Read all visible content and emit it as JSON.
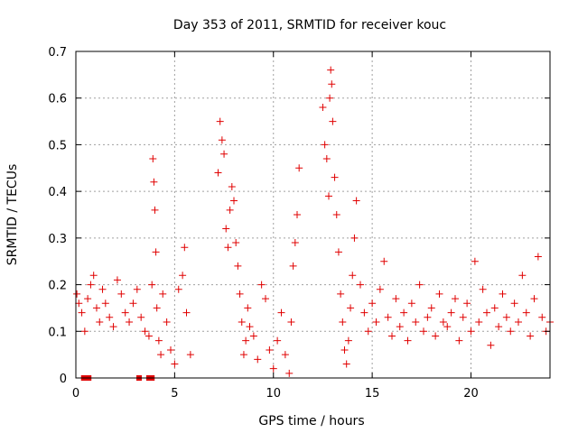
{
  "chart_data": {
    "type": "scatter",
    "title": "Day 353 of 2011, SRMTID for receiver kouc",
    "xlabel": "GPS time / hours",
    "ylabel": "SRMTID / TECUs",
    "xlim": [
      0,
      24
    ],
    "ylim": [
      0,
      0.7
    ],
    "xticks": [
      0,
      5,
      10,
      15,
      20
    ],
    "yticks": [
      0,
      0.1,
      0.2,
      0.3,
      0.4,
      0.5,
      0.6,
      0.7
    ],
    "ytick_labels": [
      "0",
      "0.1",
      "0.2",
      "0.3",
      "0.4",
      "0.5",
      "0.6",
      "0.7"
    ],
    "grid": true,
    "marker_color": "#e00000",
    "series": [
      {
        "marker": "plus",
        "x": [
          0.05,
          0.15,
          0.3,
          0.45,
          0.6,
          0.75,
          0.9,
          1.05,
          1.2,
          1.35,
          1.5,
          1.7,
          1.9,
          2.1,
          2.3,
          2.5,
          2.7,
          2.9,
          3.1,
          3.3,
          3.5,
          3.7,
          3.85,
          3.9,
          3.95,
          4.0,
          4.05,
          4.1,
          4.2,
          4.3,
          4.4,
          4.6,
          4.8,
          5.0,
          5.2,
          5.4,
          5.5,
          5.6,
          5.8,
          7.2,
          7.3,
          7.4,
          7.5,
          7.6,
          7.7,
          7.8,
          7.9,
          8.0,
          8.1,
          8.2,
          8.3,
          8.4,
          8.5,
          8.6,
          8.7,
          8.8,
          9.0,
          9.2,
          9.4,
          9.6,
          9.8,
          10.0,
          10.2,
          10.4,
          10.6,
          10.8,
          10.9,
          11.0,
          11.1,
          11.2,
          11.3,
          12.5,
          12.6,
          12.7,
          12.8,
          12.85,
          12.9,
          12.95,
          13.0,
          13.1,
          13.2,
          13.3,
          13.4,
          13.5,
          13.6,
          13.7,
          13.8,
          13.9,
          14.0,
          14.1,
          14.2,
          14.4,
          14.6,
          14.8,
          15.0,
          15.2,
          15.4,
          15.6,
          15.8,
          16.0,
          16.2,
          16.4,
          16.6,
          16.8,
          17.0,
          17.2,
          17.4,
          17.6,
          17.8,
          18.0,
          18.2,
          18.4,
          18.6,
          18.8,
          19.0,
          19.2,
          19.4,
          19.6,
          19.8,
          20.0,
          20.2,
          20.4,
          20.6,
          20.8,
          21.0,
          21.2,
          21.4,
          21.6,
          21.8,
          22.0,
          22.2,
          22.4,
          22.6,
          22.8,
          23.0,
          23.2,
          23.4,
          23.6,
          23.8,
          24.0
        ],
        "y": [
          0.18,
          0.16,
          0.14,
          0.1,
          0.17,
          0.2,
          0.22,
          0.15,
          0.12,
          0.19,
          0.16,
          0.13,
          0.11,
          0.21,
          0.18,
          0.14,
          0.12,
          0.16,
          0.19,
          0.13,
          0.1,
          0.09,
          0.2,
          0.47,
          0.42,
          0.36,
          0.27,
          0.15,
          0.08,
          0.05,
          0.18,
          0.12,
          0.06,
          0.03,
          0.19,
          0.22,
          0.28,
          0.14,
          0.05,
          0.44,
          0.55,
          0.51,
          0.48,
          0.32,
          0.28,
          0.36,
          0.41,
          0.38,
          0.29,
          0.24,
          0.18,
          0.12,
          0.05,
          0.08,
          0.15,
          0.11,
          0.09,
          0.04,
          0.2,
          0.17,
          0.06,
          0.02,
          0.08,
          0.14,
          0.05,
          0.01,
          0.12,
          0.24,
          0.29,
          0.35,
          0.45,
          0.58,
          0.5,
          0.47,
          0.39,
          0.6,
          0.66,
          0.63,
          0.55,
          0.43,
          0.35,
          0.27,
          0.18,
          0.12,
          0.06,
          0.03,
          0.08,
          0.15,
          0.22,
          0.3,
          0.38,
          0.2,
          0.14,
          0.1,
          0.16,
          0.12,
          0.19,
          0.25,
          0.13,
          0.09,
          0.17,
          0.11,
          0.14,
          0.08,
          0.16,
          0.12,
          0.2,
          0.1,
          0.13,
          0.15,
          0.09,
          0.18,
          0.12,
          0.11,
          0.14,
          0.17,
          0.08,
          0.13,
          0.16,
          0.1,
          0.25,
          0.12,
          0.19,
          0.14,
          0.07,
          0.15,
          0.11,
          0.18,
          0.13,
          0.1,
          0.16,
          0.12,
          0.22,
          0.14,
          0.09,
          0.17,
          0.26,
          0.13,
          0.1,
          0.12
        ]
      },
      {
        "marker": "square",
        "x": [
          0.4,
          0.65,
          3.2,
          3.7,
          3.85
        ],
        "y": [
          0,
          0,
          0,
          0,
          0
        ]
      }
    ]
  }
}
